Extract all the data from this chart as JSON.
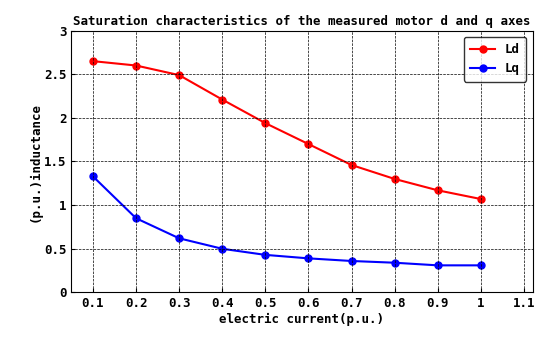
{
  "title": "Saturation characteristics of the measured motor d and q axes",
  "xlabel": "electric current(p.u.)",
  "ylabel": "(p.u.)inductance",
  "x": [
    0.1,
    0.2,
    0.3,
    0.4,
    0.5,
    0.6,
    0.7,
    0.8,
    0.9,
    1.0
  ],
  "Ld": [
    2.65,
    2.6,
    2.49,
    2.21,
    1.94,
    1.7,
    1.46,
    1.3,
    1.17,
    1.07
  ],
  "Lq": [
    1.33,
    0.85,
    0.62,
    0.5,
    0.43,
    0.39,
    0.36,
    0.34,
    0.31,
    0.31
  ],
  "Ld_color": "#ff0000",
  "Lq_color": "#0000ff",
  "background_color": "#ffffff",
  "xlim": [
    0.05,
    1.12
  ],
  "ylim": [
    0,
    3.0
  ],
  "xticks": [
    0.1,
    0.2,
    0.3,
    0.4,
    0.5,
    0.6,
    0.7,
    0.8,
    0.9,
    1.0,
    1.1
  ],
  "yticks": [
    0,
    0.5,
    1.0,
    1.5,
    2.0,
    2.5,
    3.0
  ],
  "legend_Ld": "Ld",
  "legend_Lq": "Lq",
  "title_fontsize": 9,
  "axis_fontsize": 9,
  "tick_fontsize": 9,
  "legend_fontsize": 9,
  "linewidth": 1.5,
  "markersize": 5
}
